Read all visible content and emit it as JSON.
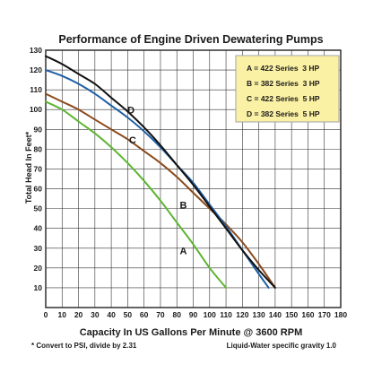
{
  "chart_data": {
    "type": "line",
    "title": "Performance of Engine Driven Dewatering Pumps",
    "xlabel": "Capacity In US Gallons Per Minute @ 3600 RPM",
    "ylabel": "Total Head In Feet*",
    "xlim": [
      0,
      180
    ],
    "ylim": [
      0,
      130
    ],
    "xticks": [
      0,
      10,
      20,
      30,
      40,
      50,
      60,
      70,
      80,
      90,
      100,
      110,
      120,
      130,
      140,
      150,
      160,
      170,
      180
    ],
    "yticks": [
      10,
      20,
      30,
      40,
      50,
      60,
      70,
      80,
      90,
      100,
      110,
      120,
      130
    ],
    "grid": true,
    "legend_position": "top-right",
    "legend": [
      "A = 422 Series  3 HP",
      "B = 382 Series  3 HP",
      "C = 422 Series  5 HP",
      "D = 382 Series  5 HP"
    ],
    "notes": {
      "left": "* Convert to PSI, divide by 2.31",
      "right": "Liquid-Water specific gravity 1.0"
    },
    "series": [
      {
        "name": "A",
        "color": "#5cb531",
        "x": [
          0,
          10,
          20,
          30,
          40,
          50,
          60,
          70,
          80,
          90,
          100,
          110
        ],
        "y": [
          104,
          100,
          94,
          88,
          81,
          73,
          64,
          54,
          43,
          32,
          20,
          10
        ]
      },
      {
        "name": "B",
        "color": "#8b4a1c",
        "x": [
          0,
          10,
          20,
          30,
          40,
          50,
          60,
          70,
          80,
          90,
          100,
          110,
          120,
          130,
          140
        ],
        "y": [
          108,
          104,
          100,
          95,
          90,
          85,
          79,
          73,
          66,
          58,
          50,
          42,
          33,
          22,
          10
        ]
      },
      {
        "name": "C",
        "color": "#1f5fa6",
        "x": [
          0,
          10,
          20,
          30,
          40,
          50,
          60,
          70,
          80,
          90,
          100,
          110,
          120,
          130,
          136
        ],
        "y": [
          120,
          117,
          113,
          108,
          102,
          96,
          89,
          81,
          72,
          63,
          52,
          41,
          29,
          17,
          10
        ]
      },
      {
        "name": "D",
        "color": "#111111",
        "x": [
          0,
          10,
          20,
          30,
          40,
          50,
          60,
          70,
          80,
          90,
          100,
          110,
          120,
          130,
          140
        ],
        "y": [
          127,
          123,
          118,
          113,
          106,
          99,
          91,
          82,
          72,
          62,
          51,
          40,
          29,
          19,
          10
        ]
      }
    ],
    "curve_labels": [
      {
        "text": "D",
        "x": 52,
        "y": 98
      },
      {
        "text": "C",
        "x": 53,
        "y": 83
      },
      {
        "text": "B",
        "x": 84,
        "y": 50
      },
      {
        "text": "A",
        "x": 84,
        "y": 27
      }
    ]
  }
}
